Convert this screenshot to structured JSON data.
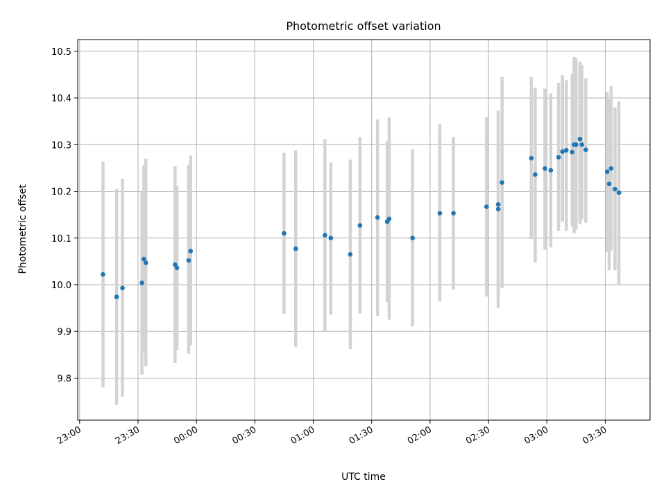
{
  "chart_data": {
    "type": "scatter",
    "title": "Photometric offset variation",
    "xlabel": "UTC time",
    "ylabel": "Photometric offset",
    "x_ticks": [
      "23:00",
      "23:30",
      "00:00",
      "00:30",
      "01:00",
      "01:30",
      "02:00",
      "02:30",
      "03:00",
      "03:30"
    ],
    "y_ticks": [
      "9.8",
      "9.9",
      "10.0",
      "10.1",
      "10.2",
      "10.3",
      "10.4",
      "10.5"
    ],
    "xlim": [
      "22:59",
      "03:53"
    ],
    "ylim": [
      9.71,
      10.525
    ],
    "grid": true,
    "error_bars": true,
    "colors": {
      "points": "#1f77b4",
      "error_bars": "#d3d3d3",
      "grid": "#b0b0b0"
    },
    "series": [
      {
        "x": [
          "23:12",
          "23:19",
          "23:22",
          "23:32",
          "23:33",
          "23:34",
          "23:49",
          "23:50",
          "23:56",
          "23:57",
          "00:45",
          "00:51",
          "01:06",
          "01:09",
          "01:19",
          "01:24",
          "01:33",
          "01:38",
          "01:39",
          "01:51",
          "02:05",
          "02:12",
          "02:29",
          "02:35",
          "02:35",
          "02:37",
          "02:52",
          "02:54",
          "02:59",
          "03:02",
          "03:06",
          "03:08",
          "03:10",
          "03:13",
          "03:14",
          "03:15",
          "03:17",
          "03:18",
          "03:20",
          "03:31",
          "03:32",
          "03:33",
          "03:35",
          "03:37"
        ],
        "y": [
          10.022,
          9.974,
          9.993,
          10.004,
          10.055,
          10.047,
          10.043,
          10.036,
          10.052,
          10.072,
          10.11,
          10.077,
          10.106,
          10.1,
          10.065,
          10.127,
          10.144,
          10.135,
          10.141,
          10.1,
          10.153,
          10.153,
          10.167,
          10.162,
          10.172,
          10.219,
          10.271,
          10.236,
          10.249,
          10.245,
          10.273,
          10.285,
          10.288,
          10.284,
          10.3,
          10.3,
          10.312,
          10.3,
          10.289,
          10.242,
          10.216,
          10.249,
          10.205,
          10.197
        ],
        "yerr_low": [
          9.78,
          9.743,
          9.76,
          9.807,
          9.855,
          9.825,
          9.832,
          9.86,
          9.852,
          9.87,
          9.938,
          9.866,
          9.9,
          9.936,
          9.862,
          9.938,
          9.933,
          9.962,
          9.925,
          9.911,
          9.964,
          9.99,
          9.975,
          9.951,
          9.972,
          9.993,
          10.098,
          10.048,
          10.075,
          10.08,
          10.115,
          10.135,
          10.115,
          10.125,
          10.11,
          10.118,
          10.13,
          10.14,
          10.133,
          10.07,
          10.031,
          10.073,
          10.031,
          10.0
        ],
        "yerr_high": [
          10.264,
          10.205,
          10.227,
          10.2,
          10.255,
          10.27,
          10.254,
          10.212,
          10.257,
          10.277,
          10.283,
          10.288,
          10.312,
          10.262,
          10.268,
          10.316,
          10.354,
          10.308,
          10.358,
          10.29,
          10.344,
          10.317,
          10.359,
          10.373,
          10.372,
          10.445,
          10.445,
          10.422,
          10.42,
          10.41,
          10.432,
          10.449,
          10.438,
          10.452,
          10.488,
          10.485,
          10.478,
          10.47,
          10.442,
          10.413,
          10.401,
          10.426,
          10.38,
          10.393
        ]
      }
    ]
  }
}
